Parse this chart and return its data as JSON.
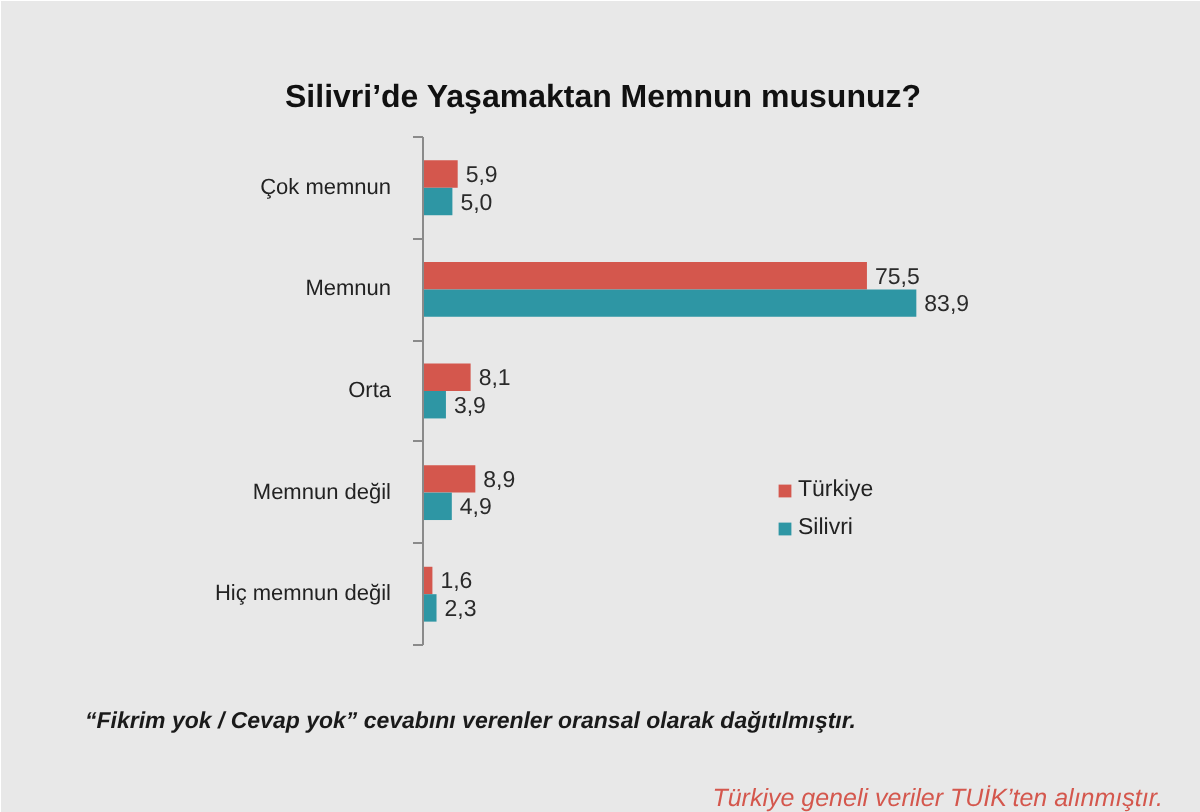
{
  "chart_data": {
    "type": "bar",
    "orientation": "horizontal",
    "title": "Silivri’de Yaşamaktan Memnun musunuz?",
    "categories": [
      "Çok memnun",
      "Memnun",
      "Orta",
      "Memnun değil",
      "Hiç memnun değil"
    ],
    "series": [
      {
        "name": "Türkiye",
        "color": "#d4574d",
        "values": [
          5.9,
          75.5,
          8.1,
          8.9,
          1.6
        ],
        "value_labels": [
          "5,9",
          "75,5",
          "8,1",
          "8,9",
          "1,6"
        ]
      },
      {
        "name": "Silivri",
        "color": "#2e96a4",
        "values": [
          5.0,
          83.9,
          3.9,
          4.9,
          2.3
        ],
        "value_labels": [
          "5,0",
          "83,9",
          "3,9",
          "4,9",
          "2,3"
        ]
      }
    ],
    "xlim": [
      0,
      100
    ],
    "tick_labels": "y",
    "legend": "right",
    "annotations": [
      "“Fikrim yok / Cevap yok” cevabını verenler oransal olarak dağıtılmıştır.",
      "Türkiye geneli veriler TUİK’ten alınmıştır."
    ]
  }
}
